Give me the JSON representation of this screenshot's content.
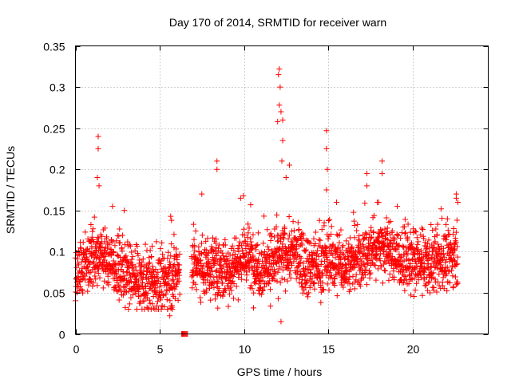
{
  "chart_data": {
    "type": "scatter",
    "title": "Day 170 of 2014, SRMTID for receiver warn",
    "xlabel": "GPS time / hours",
    "ylabel": "SRMTID / TECUs",
    "xlim": [
      0,
      24.5
    ],
    "ylim": [
      0,
      0.35
    ],
    "xticks": [
      0,
      5,
      10,
      15,
      20
    ],
    "yticks": [
      0,
      0.05,
      0.1,
      0.15,
      0.2,
      0.25,
      0.3,
      0.35
    ],
    "xtick_labels": [
      "0",
      "5",
      "10",
      "15",
      "20"
    ],
    "ytick_labels": [
      "0",
      "0.05",
      "0.1",
      "0.15",
      "0.2",
      "0.25",
      "0.3",
      "0.35"
    ],
    "grid": true,
    "marker": "+",
    "color": "#ff0000",
    "x_range_of_data": [
      0,
      22.7
    ],
    "baseline_level": [
      [
        0.0,
        0.075
      ],
      [
        1.0,
        0.095
      ],
      [
        2.0,
        0.09
      ],
      [
        3.0,
        0.07
      ],
      [
        4.0,
        0.062
      ],
      [
        5.0,
        0.06
      ],
      [
        6.0,
        0.075
      ],
      [
        7.0,
        0.085
      ],
      [
        8.0,
        0.08
      ],
      [
        9.0,
        0.075
      ],
      [
        10.0,
        0.095
      ],
      [
        11.0,
        0.08
      ],
      [
        12.0,
        0.09
      ],
      [
        13.0,
        0.1
      ],
      [
        14.0,
        0.08
      ],
      [
        15.0,
        0.09
      ],
      [
        16.0,
        0.085
      ],
      [
        17.0,
        0.09
      ],
      [
        18.0,
        0.11
      ],
      [
        19.0,
        0.095
      ],
      [
        20.0,
        0.085
      ],
      [
        21.0,
        0.085
      ],
      [
        22.0,
        0.09
      ],
      [
        22.7,
        0.1
      ]
    ],
    "peaks": [
      {
        "x": 1.35,
        "y": 0.24
      },
      {
        "x": 1.35,
        "y": 0.225
      },
      {
        "x": 1.3,
        "y": 0.19
      },
      {
        "x": 1.4,
        "y": 0.18
      },
      {
        "x": 2.2,
        "y": 0.155
      },
      {
        "x": 2.9,
        "y": 0.15
      },
      {
        "x": 5.7,
        "y": 0.138
      },
      {
        "x": 7.5,
        "y": 0.17
      },
      {
        "x": 8.4,
        "y": 0.21
      },
      {
        "x": 8.4,
        "y": 0.2
      },
      {
        "x": 9.8,
        "y": 0.165
      },
      {
        "x": 10.4,
        "y": 0.157
      },
      {
        "x": 12.1,
        "y": 0.322
      },
      {
        "x": 12.05,
        "y": 0.315
      },
      {
        "x": 12.15,
        "y": 0.3
      },
      {
        "x": 12.1,
        "y": 0.278
      },
      {
        "x": 12.2,
        "y": 0.27
      },
      {
        "x": 12.3,
        "y": 0.26
      },
      {
        "x": 12.0,
        "y": 0.258
      },
      {
        "x": 12.3,
        "y": 0.235
      },
      {
        "x": 12.25,
        "y": 0.21
      },
      {
        "x": 12.7,
        "y": 0.205
      },
      {
        "x": 12.5,
        "y": 0.19
      },
      {
        "x": 14.9,
        "y": 0.247
      },
      {
        "x": 14.9,
        "y": 0.225
      },
      {
        "x": 14.95,
        "y": 0.2
      },
      {
        "x": 14.9,
        "y": 0.175
      },
      {
        "x": 15.5,
        "y": 0.16
      },
      {
        "x": 17.3,
        "y": 0.195
      },
      {
        "x": 17.3,
        "y": 0.18
      },
      {
        "x": 18.2,
        "y": 0.21
      },
      {
        "x": 18.2,
        "y": 0.195
      },
      {
        "x": 18.0,
        "y": 0.16
      },
      {
        "x": 19.1,
        "y": 0.155
      },
      {
        "x": 21.7,
        "y": 0.152
      },
      {
        "x": 22.6,
        "y": 0.165
      },
      {
        "x": 22.7,
        "y": 0.16
      }
    ],
    "low_outliers": [
      {
        "x": 12.2,
        "y": 0.015
      },
      {
        "x": 5.6,
        "y": 0.022
      },
      {
        "x": 6.3,
        "y": 0.0
      },
      {
        "x": 6.35,
        "y": 0.0
      },
      {
        "x": 6.4,
        "y": 0.0
      },
      {
        "x": 6.45,
        "y": 0.0
      },
      {
        "x": 6.5,
        "y": 0.0
      },
      {
        "x": 6.55,
        "y": 0.0
      },
      {
        "x": 6.6,
        "y": 0.0
      },
      {
        "x": 6.65,
        "y": 0.0
      }
    ]
  }
}
